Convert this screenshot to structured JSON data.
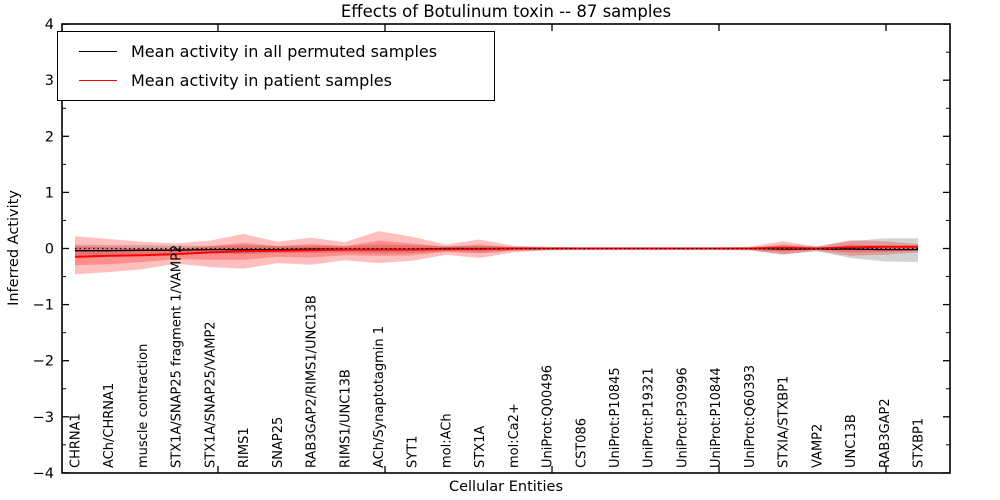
{
  "title": "Effects of Botulinum toxin -- 87 samples",
  "legend": {
    "items": [
      {
        "label": "Mean activity in all permuted samples",
        "color": "#000000"
      },
      {
        "label": "Mean activity in patient samples",
        "color": "#ff0000"
      }
    ],
    "position": "upper left"
  },
  "axes": {
    "ylabel": "Inferred Activity",
    "xlabel": "Cellular Entities",
    "ytick_labels": [
      "4",
      "3",
      "2",
      "1",
      "0",
      "−1",
      "−2",
      "−3",
      "−4"
    ]
  },
  "chart_data": {
    "type": "line",
    "title": "Effects of Botulinum toxin -- 87 samples",
    "xlabel": "Cellular Entities",
    "ylabel": "Inferred Activity",
    "ylim": [
      -4,
      4
    ],
    "grid": false,
    "legend_position": "upper left",
    "categories": [
      "CHRNA1",
      "ACh/CHRNA1",
      "muscle contraction",
      "STX1A/SNAP25 fragment 1/VAMP2",
      "STX1A/SNAP25/VAMP2",
      "RIMS1",
      "SNAP25",
      "RAB3GAP2/RIMS1/UNC13B",
      "RIMS1/UNC13B",
      "ACh/Synaptotagmin 1",
      "SYT1",
      "mol:ACh",
      "STX1A",
      "mol:Ca2+",
      "UniProt:Q00496",
      "CST086",
      "UniProt:P10845",
      "UniProt:P19321",
      "UniProt:P30996",
      "UniProt:P10844",
      "UniProt:Q60393",
      "STXIA/STXBP1",
      "VAMP2",
      "UNC13B",
      "RAB3GAP2",
      "STXBP1"
    ],
    "series": [
      {
        "name": "Mean activity in all permuted samples",
        "color": "#000000",
        "style": "solid",
        "width": 1.3,
        "values": [
          -0.04,
          -0.04,
          -0.03,
          -0.03,
          -0.02,
          -0.02,
          -0.02,
          -0.01,
          -0.01,
          -0.01,
          -0.01,
          0,
          0,
          0,
          0,
          0,
          0,
          0,
          0,
          0,
          0,
          -0.01,
          -0.01,
          -0.01,
          -0.02,
          -0.02
        ]
      },
      {
        "name": "Mean activity in patient samples",
        "color": "#ff0000",
        "style": "solid",
        "width": 2,
        "values": [
          -0.15,
          -0.13,
          -0.12,
          -0.1,
          -0.07,
          -0.05,
          -0.04,
          -0.03,
          -0.02,
          -0.02,
          -0.02,
          -0.01,
          -0.01,
          0,
          0,
          0,
          0,
          0,
          0,
          0,
          0,
          0.01,
          0,
          0.02,
          0.03,
          0.03
        ]
      },
      {
        "name": "zero-reference",
        "color": "#000000",
        "style": "dotted",
        "width": 1.3,
        "values": [
          0,
          0,
          0,
          0,
          0,
          0,
          0,
          0,
          0,
          0,
          0,
          0,
          0,
          0,
          0,
          0,
          0,
          0,
          0,
          0,
          0,
          0,
          0,
          0,
          0,
          0
        ]
      }
    ],
    "bands": [
      {
        "name": "permuted-std-band",
        "color": "#808080",
        "opacity": 0.35,
        "upper": [
          0.07,
          0.06,
          0.06,
          0.05,
          0.05,
          0.06,
          0.05,
          0.05,
          0.05,
          0.07,
          0.06,
          0.04,
          0.05,
          0.03,
          0.02,
          0.02,
          0.02,
          0.02,
          0.02,
          0.02,
          0.02,
          0.07,
          0.04,
          0.13,
          0.18,
          0.18
        ],
        "lower": [
          -0.14,
          -0.13,
          -0.12,
          -0.1,
          -0.09,
          -0.1,
          -0.08,
          -0.08,
          -0.07,
          -0.09,
          -0.08,
          -0.05,
          -0.06,
          -0.04,
          -0.03,
          -0.03,
          -0.03,
          -0.03,
          -0.03,
          -0.03,
          -0.03,
          -0.1,
          -0.05,
          -0.17,
          -0.23,
          -0.24
        ]
      },
      {
        "name": "patient-std-band-outer",
        "color": "#ff0000",
        "opacity": 0.25,
        "upper": [
          0.22,
          0.17,
          0.12,
          0.09,
          0.14,
          0.26,
          0.12,
          0.19,
          0.11,
          0.31,
          0.21,
          0.07,
          0.16,
          0.05,
          0.03,
          0.02,
          0.02,
          0.02,
          0.02,
          0.02,
          0.03,
          0.13,
          0.03,
          0.15,
          0.13,
          0.08
        ],
        "lower": [
          -0.46,
          -0.42,
          -0.37,
          -0.27,
          -0.33,
          -0.36,
          -0.26,
          -0.29,
          -0.21,
          -0.26,
          -0.22,
          -0.11,
          -0.17,
          -0.07,
          -0.03,
          -0.02,
          -0.02,
          -0.02,
          -0.02,
          -0.02,
          -0.03,
          -0.11,
          -0.04,
          -0.13,
          -0.11,
          -0.07
        ]
      },
      {
        "name": "patient-std-band-inner",
        "color": "#ff0000",
        "opacity": 0.25,
        "upper": [
          0.04,
          0.02,
          0.0,
          -0.01,
          0.04,
          0.1,
          0.04,
          0.08,
          0.04,
          0.14,
          0.09,
          0.03,
          0.07,
          0.02,
          0.01,
          0.01,
          0.01,
          0.01,
          0.01,
          0.01,
          0.01,
          0.06,
          0.01,
          0.07,
          0.05,
          0.03
        ],
        "lower": [
          -0.3,
          -0.28,
          -0.24,
          -0.19,
          -0.2,
          -0.2,
          -0.15,
          -0.16,
          -0.12,
          -0.13,
          -0.12,
          -0.06,
          -0.09,
          -0.04,
          -0.02,
          -0.01,
          -0.01,
          -0.01,
          -0.01,
          -0.01,
          -0.02,
          -0.06,
          -0.02,
          -0.07,
          -0.06,
          -0.04
        ]
      }
    ]
  }
}
